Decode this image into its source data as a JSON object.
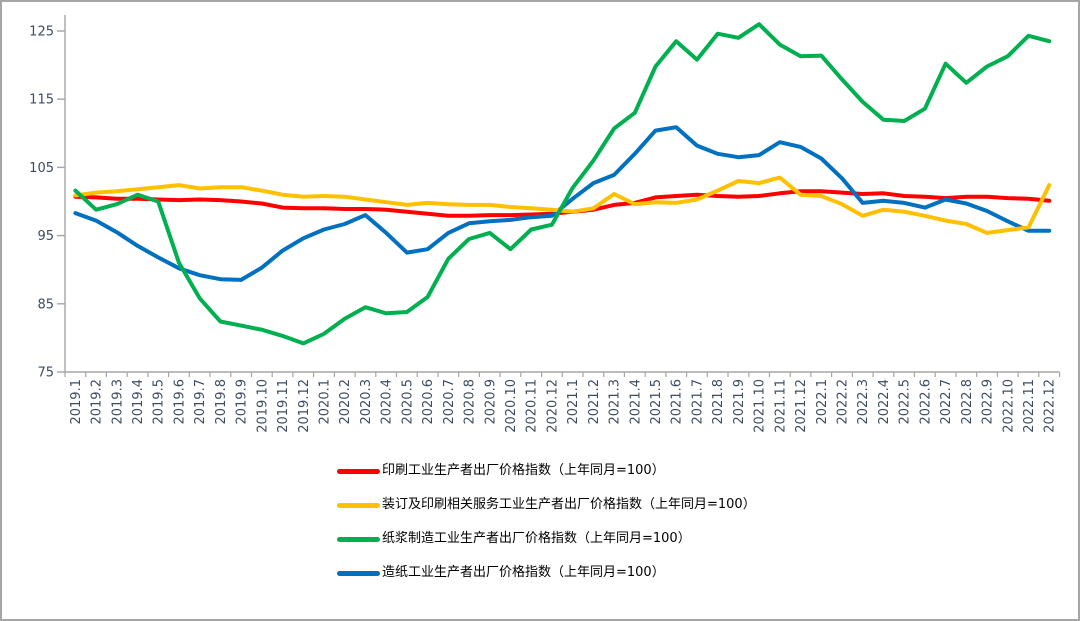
{
  "chart_data": {
    "type": "line",
    "title": "",
    "xlabel": "",
    "ylabel": "",
    "y_axis": {
      "min": 75,
      "max": 125,
      "ticks": [
        75,
        85,
        95,
        105,
        115,
        125
      ]
    },
    "grid": false,
    "legend_position": "bottom-left",
    "x_labels": [
      "2019.1",
      "2019.2",
      "2019.3",
      "2019.4",
      "2019.5",
      "2019.6",
      "2019.7",
      "2019.8",
      "2019.9",
      "2019.10",
      "2019.11",
      "2019.12",
      "2020.1",
      "2020.2",
      "2020.3",
      "2020.4",
      "2020.5",
      "2020.6",
      "2020.7",
      "2020.8",
      "2020.9",
      "2020.10",
      "2020.11",
      "2020.12",
      "2021.1",
      "2021.2",
      "2021.3",
      "2021.4",
      "2021.5",
      "2021.6",
      "2021.7",
      "2021.8",
      "2021.9",
      "2021.10",
      "2021.11",
      "2021.12",
      "2022.1",
      "2022.2",
      "2022.3",
      "2022.4",
      "2022.5",
      "2022.6",
      "2022.7",
      "2022.8",
      "2022.9",
      "2022.10",
      "2022.11",
      "2022.12"
    ],
    "series": [
      {
        "key": "printing",
        "name": "印刷工业生产者出厂价格指数（上年同月=100）",
        "color": "#FF0000",
        "values": [
          100.7,
          100.6,
          100.4,
          100.4,
          100.3,
          100.2,
          100.3,
          100.2,
          100.0,
          99.7,
          99.1,
          99.0,
          99.0,
          98.9,
          98.9,
          98.8,
          98.5,
          98.2,
          97.9,
          97.9,
          98.0,
          98.0,
          98.1,
          98.2,
          98.5,
          98.8,
          99.5,
          99.8,
          100.6,
          100.8,
          101.0,
          100.8,
          100.7,
          100.8,
          101.2,
          101.5,
          101.5,
          101.3,
          101.1,
          101.2,
          100.8,
          100.7,
          100.5,
          100.7,
          100.7,
          100.5,
          100.4,
          100.1
        ]
      },
      {
        "key": "binding-services",
        "name": "装订及印刷相关服务工业生产者出厂价格指数（上年同月=100）",
        "color": "#FFC000",
        "values": [
          100.9,
          101.3,
          101.5,
          101.8,
          102.1,
          102.4,
          101.9,
          102.1,
          102.1,
          101.6,
          101.0,
          100.7,
          100.8,
          100.7,
          100.3,
          99.9,
          99.5,
          99.8,
          99.6,
          99.5,
          99.5,
          99.2,
          99.0,
          98.8,
          98.5,
          99.0,
          101.1,
          99.6,
          99.9,
          99.8,
          100.3,
          101.6,
          103.0,
          102.7,
          103.5,
          101.0,
          100.8,
          99.6,
          97.9,
          98.8,
          98.5,
          97.9,
          97.2,
          96.7,
          95.4,
          95.8,
          96.2,
          102.4
        ]
      },
      {
        "key": "pulp-manufacturing",
        "name": "纸浆制造工业生产者出厂价格指数（上年同月=100）",
        "color": "#00B050",
        "values": [
          101.6,
          98.8,
          99.6,
          101.0,
          100.0,
          91.0,
          85.8,
          82.4,
          81.8,
          81.2,
          80.3,
          79.2,
          80.6,
          82.8,
          84.5,
          83.6,
          83.8,
          86.0,
          91.6,
          94.5,
          95.4,
          93.0,
          95.9,
          96.6,
          102.0,
          106.0,
          110.7,
          113.0,
          119.8,
          123.5,
          120.8,
          124.6,
          124.0,
          126.0,
          123.0,
          121.3,
          121.4,
          117.9,
          114.6,
          112.0,
          111.8,
          113.6,
          120.2,
          117.4,
          119.8,
          121.3,
          124.3,
          123.5
        ]
      },
      {
        "key": "papermaking",
        "name": "造纸工业生产者出厂价格指数（上年同月=100）",
        "color": "#0070C0",
        "values": [
          98.3,
          97.2,
          95.5,
          93.5,
          91.8,
          90.2,
          89.2,
          88.6,
          88.5,
          90.3,
          92.8,
          94.6,
          95.9,
          96.7,
          98.0,
          95.4,
          92.5,
          93.0,
          95.4,
          96.8,
          97.1,
          97.3,
          97.7,
          97.9,
          100.4,
          102.7,
          103.9,
          107.0,
          110.4,
          110.9,
          108.2,
          107.0,
          106.5,
          106.8,
          108.7,
          108.0,
          106.3,
          103.4,
          99.8,
          100.1,
          99.8,
          99.1,
          100.3,
          99.7,
          98.6,
          97.1,
          95.7,
          95.7
        ]
      }
    ]
  },
  "colors": {
    "axis": "#A6A6A6",
    "tick_label": "#3E4C61",
    "legend_text": "#000000",
    "background": "#FFFFFF",
    "border": "#A6A6A6"
  }
}
